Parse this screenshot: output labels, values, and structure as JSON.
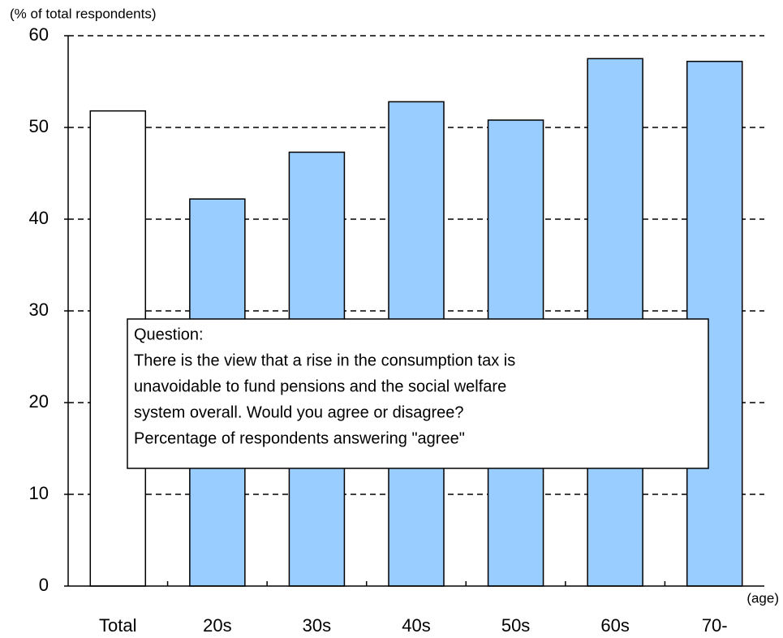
{
  "chart_data": {
    "type": "bar",
    "y_axis_label": "(% of total respondents)",
    "x_axis_label": "(age)",
    "categories": [
      "Total",
      "20s",
      "30s",
      "40s",
      "50s",
      "60s",
      "70-"
    ],
    "values": [
      51.8,
      42.2,
      47.3,
      52.8,
      50.8,
      57.5,
      57.2
    ],
    "colors": [
      "#ffffff",
      "#99ccff",
      "#99ccff",
      "#99ccff",
      "#99ccff",
      "#99ccff",
      "#99ccff"
    ],
    "ylim": [
      0,
      60
    ],
    "yticks": [
      0,
      10,
      20,
      30,
      40,
      50,
      60
    ],
    "grid": true,
    "annotation": [
      "Question:",
      "There is the view that a rise in the consumption tax is",
      "unavoidable to fund pensions and the social welfare",
      "system overall. Would you agree or disagree?",
      "Percentage of respondents answering \"agree\""
    ]
  }
}
